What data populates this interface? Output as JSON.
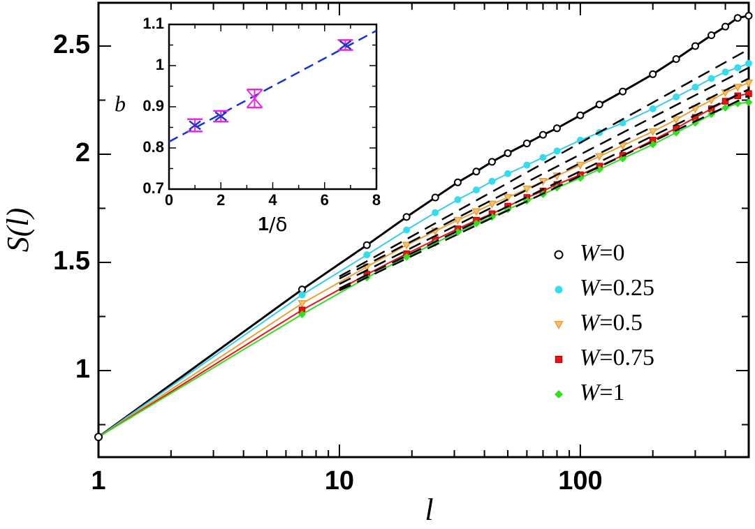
{
  "chart_data": [
    {
      "type": "line",
      "title": "",
      "xlabel": "l",
      "ylabel": "S(l)",
      "xscale": "log",
      "xlim": [
        1,
        500
      ],
      "ylim": [
        0.6,
        2.7
      ],
      "x_ticks": [
        1,
        10,
        100
      ],
      "x_tick_labels": [
        "1",
        "10",
        "100"
      ],
      "y_ticks": [
        1,
        1.5,
        2,
        2.5
      ],
      "y_tick_labels": [
        "1",
        "1.5",
        "2",
        "2.5"
      ],
      "legend_position": "bottom-right",
      "series": [
        {
          "name": "W=0",
          "legend_prefix": "W",
          "legend_value": "=0",
          "color": "#000000",
          "marker": "open-circle",
          "x": [
            1,
            7,
            13,
            19,
            25,
            31,
            37,
            43,
            50,
            60,
            70,
            80,
            100,
            120,
            150,
            200,
            250,
            300,
            350,
            400,
            450,
            500
          ],
          "values": [
            0.693,
            1.375,
            1.58,
            1.71,
            1.8,
            1.87,
            1.92,
            1.965,
            2.005,
            2.05,
            2.09,
            2.12,
            2.18,
            2.23,
            2.29,
            2.37,
            2.44,
            2.5,
            2.55,
            2.59,
            2.63,
            2.64
          ]
        },
        {
          "name": "W=0.25",
          "legend_prefix": "W",
          "legend_value": "=0.25",
          "color": "#33ddee",
          "marker": "filled-circle",
          "x": [
            1,
            7,
            13,
            19,
            25,
            31,
            37,
            43,
            50,
            60,
            70,
            80,
            100,
            120,
            150,
            200,
            250,
            300,
            350,
            400,
            450,
            500
          ],
          "values": [
            0.693,
            1.35,
            1.535,
            1.65,
            1.73,
            1.79,
            1.835,
            1.875,
            1.91,
            1.95,
            1.985,
            2.015,
            2.065,
            2.1,
            2.145,
            2.21,
            2.265,
            2.31,
            2.35,
            2.38,
            2.4,
            2.42
          ]
        },
        {
          "name": "W=0.5",
          "legend_prefix": "W",
          "legend_value": "=0.5",
          "color": "#e8a23a",
          "marker": "triangle-down",
          "x": [
            1,
            7,
            13,
            19,
            25,
            31,
            37,
            43,
            50,
            60,
            70,
            80,
            100,
            120,
            150,
            200,
            250,
            300,
            350,
            400,
            450,
            500
          ],
          "values": [
            0.693,
            1.31,
            1.48,
            1.58,
            1.645,
            1.695,
            1.735,
            1.77,
            1.8,
            1.84,
            1.875,
            1.9,
            1.95,
            1.99,
            2.04,
            2.105,
            2.16,
            2.21,
            2.25,
            2.285,
            2.31,
            2.33
          ]
        },
        {
          "name": "W=0.75",
          "legend_prefix": "W",
          "legend_value": "=0.75",
          "color": "#ee1111",
          "marker": "square",
          "x": [
            1,
            7,
            13,
            19,
            25,
            31,
            37,
            43,
            50,
            60,
            70,
            80,
            100,
            120,
            150,
            200,
            250,
            300,
            350,
            400,
            450,
            500
          ],
          "values": [
            0.693,
            1.28,
            1.445,
            1.54,
            1.605,
            1.655,
            1.695,
            1.725,
            1.76,
            1.8,
            1.83,
            1.86,
            1.905,
            1.945,
            1.995,
            2.065,
            2.12,
            2.17,
            2.21,
            2.245,
            2.27,
            2.28
          ]
        },
        {
          "name": "W=1",
          "legend_prefix": "W",
          "legend_value": "=1",
          "color": "#33dd22",
          "marker": "diamond",
          "x": [
            1,
            7,
            13,
            19,
            25,
            31,
            37,
            43,
            50,
            60,
            70,
            80,
            100,
            120,
            150,
            200,
            250,
            300,
            350,
            400,
            450,
            500
          ],
          "values": [
            0.693,
            1.26,
            1.43,
            1.525,
            1.59,
            1.64,
            1.68,
            1.71,
            1.745,
            1.785,
            1.815,
            1.845,
            1.89,
            1.93,
            1.98,
            2.045,
            2.1,
            2.145,
            2.185,
            2.215,
            2.235,
            2.24
          ]
        }
      ],
      "fit_lines": [
        {
          "color": "#000000",
          "style": "dashed",
          "x": [
            10,
            500
          ],
          "values": [
            1.435,
            2.485
          ]
        },
        {
          "color": "#000000",
          "style": "dashed",
          "x": [
            10,
            500
          ],
          "values": [
            1.425,
            2.4
          ]
        },
        {
          "color": "#000000",
          "style": "dashed",
          "x": [
            10,
            500
          ],
          "values": [
            1.4,
            2.35
          ]
        },
        {
          "color": "#000000",
          "style": "dashed",
          "x": [
            10,
            500
          ],
          "values": [
            1.38,
            2.3
          ]
        },
        {
          "color": "#000000",
          "style": "dashed",
          "x": [
            10,
            500
          ],
          "values": [
            1.37,
            2.27
          ]
        }
      ]
    },
    {
      "type": "scatter",
      "title": "",
      "xlabel_main": "1",
      "xlabel_sym": "/δ",
      "ylabel": "b",
      "xlim": [
        0,
        8
      ],
      "ylim": [
        0.7,
        1.1
      ],
      "x_ticks": [
        0,
        2,
        4,
        6,
        8
      ],
      "x_tick_labels": [
        "0",
        "2",
        "4",
        "6",
        "8"
      ],
      "y_ticks": [
        0.7,
        0.8,
        0.9,
        1.0,
        1.1
      ],
      "y_tick_labels": [
        "0.7",
        "0.8",
        "0.9",
        "1",
        "1.1"
      ],
      "point_color": "#ee22ee",
      "cross_color": "#2233cc",
      "points": [
        {
          "x": 1.0,
          "y": 0.855,
          "err": 0.015,
          "cross": true
        },
        {
          "x": 2.0,
          "y": 0.877,
          "err": 0.013,
          "cross": true
        },
        {
          "x": 3.3,
          "y": 0.92,
          "err": 0.022,
          "cross": false
        },
        {
          "x": 6.8,
          "y": 1.05,
          "err": 0.012,
          "cross": true
        }
      ],
      "fit_line": {
        "color": "#1133dd",
        "style": "dashed",
        "x": [
          0,
          8
        ],
        "values": [
          0.815,
          1.085
        ]
      }
    }
  ]
}
